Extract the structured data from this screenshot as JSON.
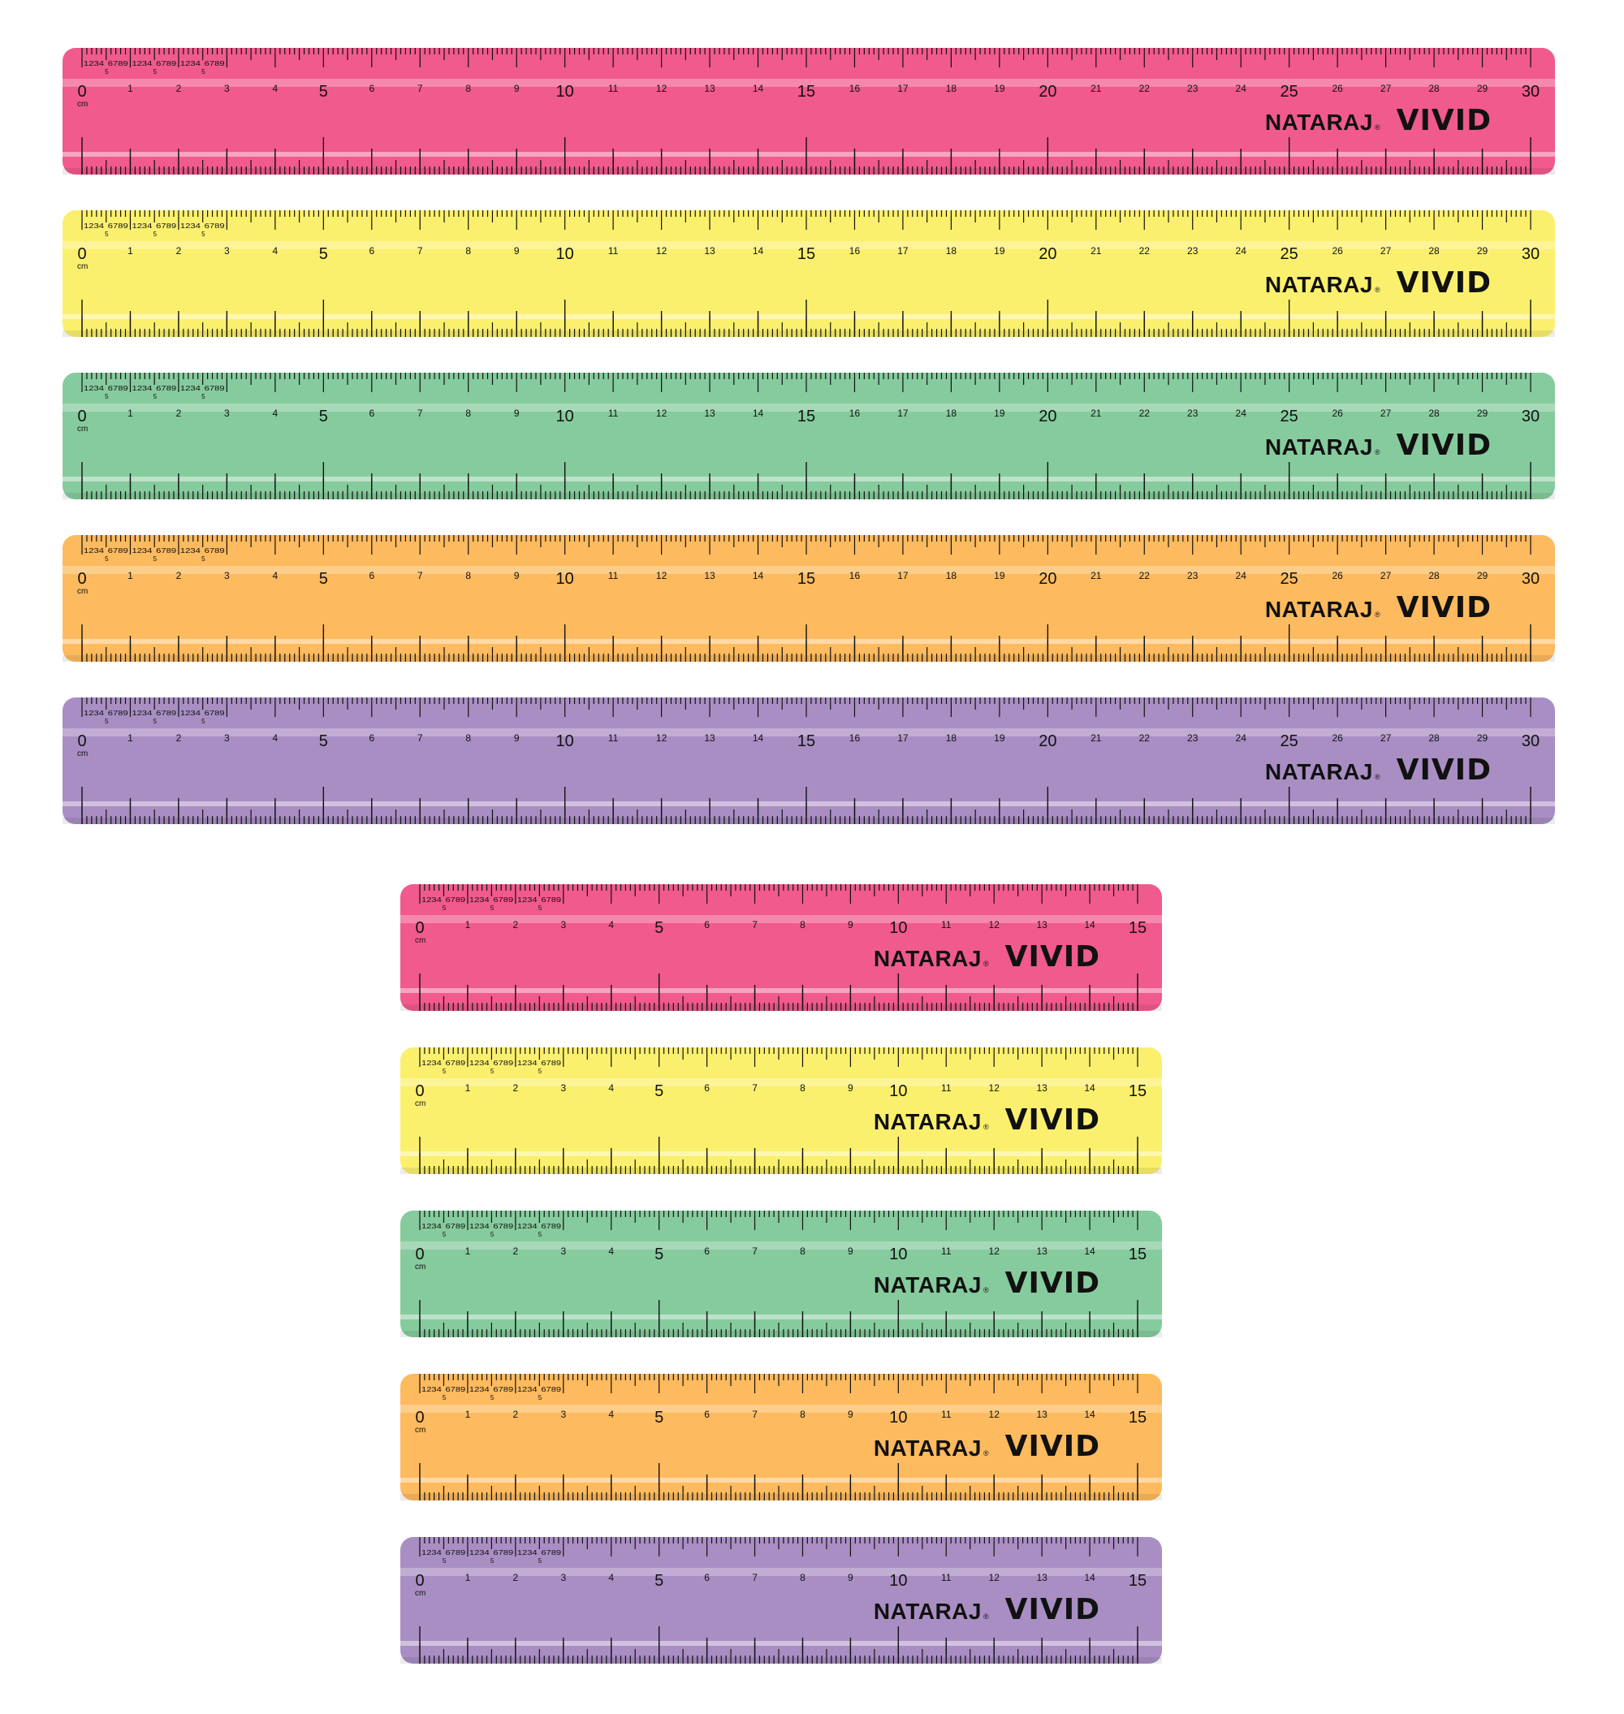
{
  "brand": {
    "name": "NATARAJ",
    "registered_mark": "®",
    "product": "VIVID"
  },
  "unit_label": "cm",
  "vernier_label": {
    "digits_left": "1234",
    "digits_right": "6789",
    "five": "5"
  },
  "colors": {
    "pink": "#f15a8c",
    "yellow": "#fbf06e",
    "green": "#86cb9d",
    "orange": "#fdba5e",
    "purple": "#a98ec4",
    "ink": "#111111"
  },
  "rulers": [
    {
      "id": "long-pink",
      "length_cm": 30,
      "color": "pink"
    },
    {
      "id": "long-yellow",
      "length_cm": 30,
      "color": "yellow"
    },
    {
      "id": "long-green",
      "length_cm": 30,
      "color": "green"
    },
    {
      "id": "long-orange",
      "length_cm": 30,
      "color": "orange"
    },
    {
      "id": "long-purple",
      "length_cm": 30,
      "color": "purple"
    },
    {
      "id": "short-pink",
      "length_cm": 15,
      "color": "pink"
    },
    {
      "id": "short-yellow",
      "length_cm": 15,
      "color": "yellow"
    },
    {
      "id": "short-green",
      "length_cm": 15,
      "color": "green"
    },
    {
      "id": "short-orange",
      "length_cm": 15,
      "color": "orange"
    },
    {
      "id": "short-purple",
      "length_cm": 15,
      "color": "purple"
    }
  ]
}
